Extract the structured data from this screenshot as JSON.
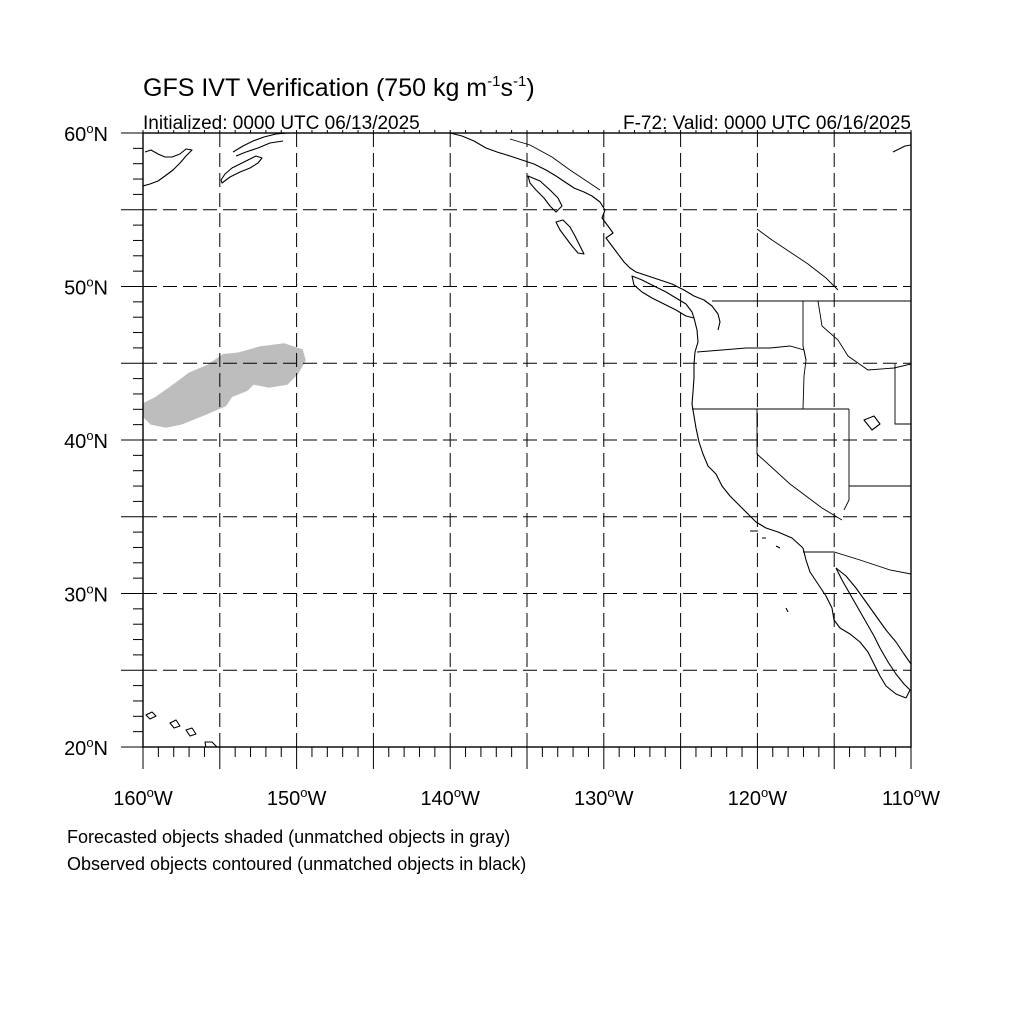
{
  "title": {
    "main": "GFS IVT Verification (750 kg m",
    "sup1": "-1",
    "mid": "s",
    "sup2": "-1",
    "end": ")"
  },
  "subtitle_left": "Initialized: 0000 UTC 06/13/2025",
  "subtitle_right": "F-72: Valid: 0000 UTC 06/16/2025",
  "map": {
    "lon_range": [
      -160,
      -110
    ],
    "lat_range": [
      20,
      60
    ],
    "lon_ticks": [
      {
        "value": -160,
        "deg": "160",
        "hemi": "W"
      },
      {
        "value": -150,
        "deg": "150",
        "hemi": "W"
      },
      {
        "value": -140,
        "deg": "140",
        "hemi": "W"
      },
      {
        "value": -130,
        "deg": "130",
        "hemi": "W"
      },
      {
        "value": -120,
        "deg": "120",
        "hemi": "W"
      },
      {
        "value": -110,
        "deg": "110",
        "hemi": "W"
      }
    ],
    "lat_ticks": [
      {
        "value": 60,
        "deg": "60",
        "hemi": "N"
      },
      {
        "value": 50,
        "deg": "50",
        "hemi": "N"
      },
      {
        "value": 40,
        "deg": "40",
        "hemi": "N"
      },
      {
        "value": 30,
        "deg": "30",
        "hemi": "N"
      },
      {
        "value": 20,
        "deg": "20",
        "hemi": "N"
      }
    ],
    "grid_lon": [
      -155,
      -150,
      -145,
      -140,
      -135,
      -130,
      -125,
      -120,
      -115
    ],
    "grid_lat": [
      25,
      30,
      35,
      40,
      45,
      50,
      55
    ],
    "forecast_object_color": "#bdbdbd",
    "forecast_objects": [
      {
        "status": "unmatched",
        "outline": [
          [
            -160,
            41.5
          ],
          [
            -159.5,
            41.0
          ],
          [
            -158.5,
            40.8
          ],
          [
            -157.5,
            41.0
          ],
          [
            -156.0,
            41.6
          ],
          [
            -154.6,
            42.2
          ],
          [
            -154.2,
            42.8
          ],
          [
            -153.2,
            43.2
          ],
          [
            -152.8,
            43.6
          ],
          [
            -151.8,
            43.4
          ],
          [
            -150.6,
            43.6
          ],
          [
            -149.9,
            44.3
          ],
          [
            -149.4,
            45.2
          ],
          [
            -149.6,
            45.9
          ],
          [
            -150.8,
            46.3
          ],
          [
            -152.4,
            46.1
          ],
          [
            -153.8,
            45.7
          ],
          [
            -154.8,
            45.6
          ],
          [
            -155.8,
            44.9
          ],
          [
            -157.0,
            44.4
          ],
          [
            -158.2,
            43.5
          ],
          [
            -159.2,
            42.8
          ],
          [
            -160,
            42.4
          ]
        ]
      }
    ]
  },
  "footnotes": [
    "Forecasted objects shaded (unmatched objects in gray)",
    "Observed objects contoured (unmatched objects in black)"
  ]
}
